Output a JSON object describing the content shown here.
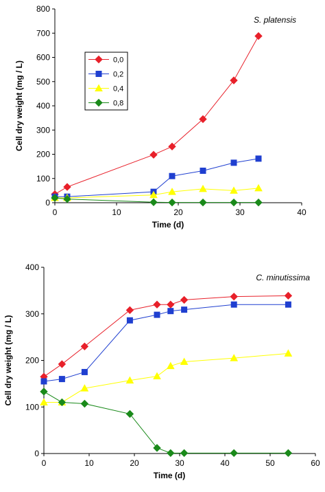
{
  "chart_data": [
    {
      "type": "line",
      "title": "S. platensis",
      "xlabel": "Time (d)",
      "ylabel": "Cell dry weight (mg / L)",
      "xlim": [
        0,
        40
      ],
      "ylim": [
        0,
        800
      ],
      "xticks": [
        0,
        10,
        20,
        30,
        40
      ],
      "yticks": [
        0,
        100,
        200,
        300,
        400,
        500,
        600,
        700,
        800
      ],
      "grid": false,
      "legend_position": "left",
      "series": [
        {
          "name": "0,0",
          "color": "#e8202a",
          "marker": "diamond",
          "x": [
            0,
            2,
            16,
            19,
            24,
            29,
            33
          ],
          "y": [
            35,
            65,
            198,
            232,
            345,
            505,
            688
          ]
        },
        {
          "name": "0,2",
          "color": "#1f3fd0",
          "marker": "square",
          "x": [
            0,
            2,
            16,
            19,
            24,
            29,
            33
          ],
          "y": [
            25,
            25,
            45,
            110,
            132,
            165,
            182
          ]
        },
        {
          "name": "0,4",
          "color": "#ffff00",
          "marker": "triangle",
          "x": [
            0,
            2,
            16,
            19,
            24,
            29,
            33
          ],
          "y": [
            20,
            20,
            32,
            45,
            57,
            50,
            60
          ]
        },
        {
          "name": "0,8",
          "color": "#1a8a1a",
          "marker": "diamond",
          "x": [
            0,
            2,
            16,
            19,
            24,
            29,
            33
          ],
          "y": [
            20,
            15,
            2,
            1,
            1,
            1,
            1
          ]
        }
      ]
    },
    {
      "type": "line",
      "title": "C. minutissima",
      "xlabel": "Time (d)",
      "ylabel": "Cell dry weight (mg / L)",
      "xlim": [
        0,
        60
      ],
      "ylim": [
        0,
        400
      ],
      "xticks": [
        0,
        10,
        20,
        30,
        40,
        50,
        60
      ],
      "yticks": [
        0,
        100,
        200,
        300,
        400
      ],
      "grid": false,
      "series": [
        {
          "color": "#e8202a",
          "marker": "diamond",
          "x": [
            0,
            4,
            9,
            19,
            25,
            28,
            31,
            42,
            54
          ],
          "y": [
            165,
            192,
            230,
            308,
            320,
            320,
            330,
            337,
            339
          ]
        },
        {
          "color": "#1f3fd0",
          "marker": "square",
          "x": [
            0,
            4,
            9,
            19,
            25,
            28,
            31,
            42,
            54
          ],
          "y": [
            155,
            160,
            175,
            286,
            298,
            306,
            309,
            320,
            320
          ]
        },
        {
          "color": "#ffff00",
          "marker": "triangle",
          "x": [
            0,
            4,
            9,
            19,
            25,
            28,
            31,
            42,
            54
          ],
          "y": [
            110,
            110,
            140,
            157,
            166,
            188,
            197,
            205,
            215
          ]
        },
        {
          "color": "#1a8a1a",
          "marker": "diamond",
          "x": [
            0,
            4,
            9,
            19,
            25,
            28,
            31,
            42,
            54
          ],
          "y": [
            133,
            110,
            107,
            85,
            12,
            1,
            1,
            1,
            1
          ]
        }
      ]
    }
  ]
}
